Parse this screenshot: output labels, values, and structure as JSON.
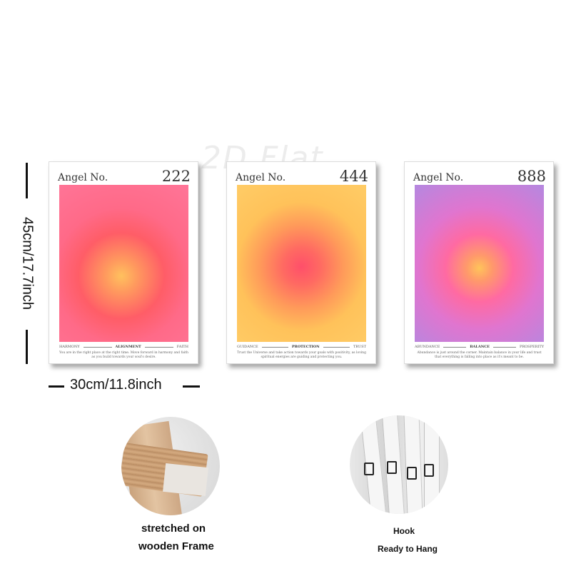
{
  "watermark": "2D Flat",
  "dimensions": {
    "height_label": "45cm/17.7inch",
    "width_label": "30cm/11.8inch"
  },
  "posters": [
    {
      "label": "Angel No.",
      "number": "222",
      "word_left": "HARMONY",
      "word_center": "ALIGNMENT",
      "word_right": "FAITH",
      "message": "You are in the right place at the right time. Move forward in harmony and faith as you build towards your soul's desire.",
      "colors": [
        "#ffc15e",
        "#ff5d67",
        "#ff7598"
      ]
    },
    {
      "label": "Angel No.",
      "number": "444",
      "word_left": "GUIDANCE",
      "word_center": "PROTECTION",
      "word_right": "TRUST",
      "message": "Trust the Universe and take action towards your goals with positivity, as loving spiritual energies are guiding and protecting you.",
      "colors": [
        "#ff4f6a",
        "#ff9a5a",
        "#ffcc66"
      ]
    },
    {
      "label": "Angel No.",
      "number": "888",
      "word_left": "ABUNDANCE",
      "word_center": "BALANCE",
      "word_right": "PROSPERITY",
      "message": "Abundance is just around the corner. Maintain balance in your life and trust that everything is falling into place as it's meant to be.",
      "colors": [
        "#ffc45a",
        "#ff6aa2",
        "#b488e0"
      ]
    }
  ],
  "features": {
    "frame_caption_line1": "stretched on",
    "frame_caption_line2": "wooden Frame",
    "hook_caption_line1": "Hook",
    "hook_caption_line2": "Ready to Hang"
  }
}
